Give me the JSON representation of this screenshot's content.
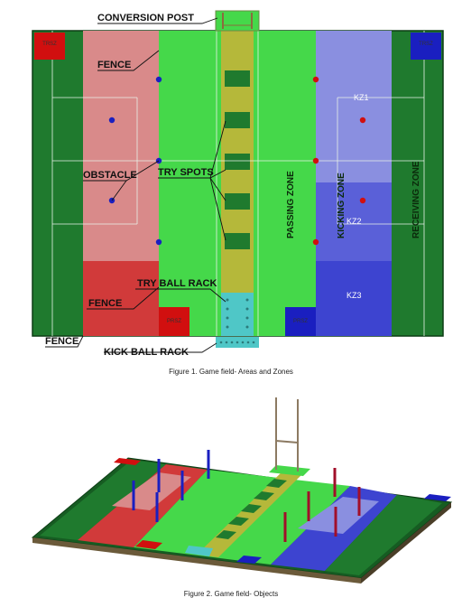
{
  "figure1": {
    "labels": {
      "conversion_post": "CONVERSION POST",
      "fence_top": "FENCE",
      "obstacle": "OBSTACLE",
      "try_spots": "TRY SPOTS",
      "try_ball_rack": "TRY BALL RACK",
      "fence_mid": "FENCE",
      "fence_bottom": "FENCE",
      "kick_ball_rack": "KICK BALL RACK",
      "passing_zone": "PASSING ZONE",
      "kicking_zone": "KICKING ZONE",
      "receiving_zone": "RECEIVING ZONE",
      "kz1": "KZ1",
      "kz2": "KZ2",
      "kz3": "KZ3",
      "trsz_red": "TRSZ",
      "trsz_blue": "TRSZ",
      "prsz_red": "PRSZ",
      "prsz_blue": "PRSZ"
    },
    "caption": "Figure 1. Game field- Areas and Zones"
  },
  "figure2": {
    "caption": "Figure 2. Game field- Objects"
  },
  "colors": {
    "dark_green": "#1f7a2e",
    "mid_green": "#2fb34a",
    "light_green": "#45d84a",
    "red_light": "#d98a8a",
    "red": "#d13a3a",
    "blue_light": "#8a8fe0",
    "blue": "#3d44d0",
    "yellow_green": "#b5b83a",
    "cyan": "#4fc7c7"
  }
}
